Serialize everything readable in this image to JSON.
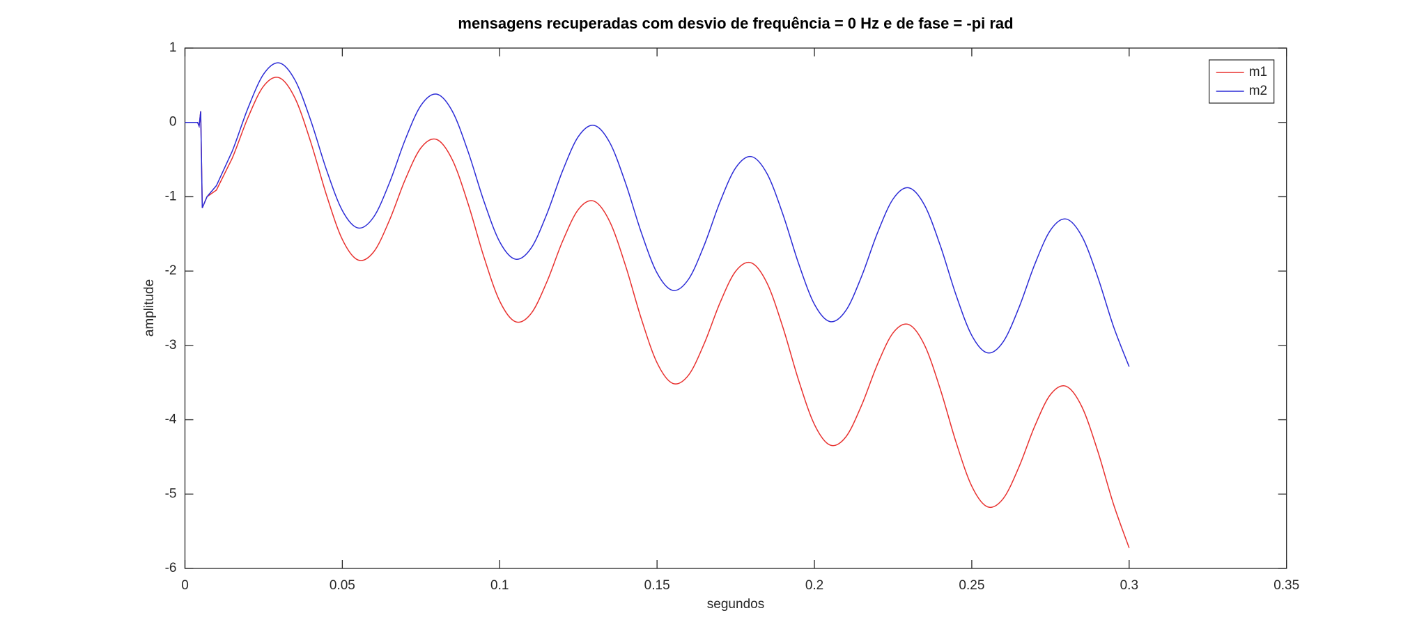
{
  "chart_data": {
    "type": "line",
    "title": "mensagens recuperadas com desvio de frequência = 0 Hz e de fase = -pi rad",
    "xlabel": "segundos",
    "ylabel": "amplitude",
    "x": [
      0,
      0.004,
      0.0045,
      0.005,
      0.0055,
      0.007,
      0.01,
      0.015,
      0.02,
      0.025,
      0.03,
      0.035,
      0.04,
      0.045,
      0.05,
      0.055,
      0.06,
      0.065,
      0.07,
      0.075,
      0.08,
      0.085,
      0.09,
      0.095,
      0.1,
      0.105,
      0.11,
      0.115,
      0.12,
      0.125,
      0.13,
      0.135,
      0.14,
      0.145,
      0.15,
      0.155,
      0.16,
      0.165,
      0.17,
      0.175,
      0.18,
      0.185,
      0.19,
      0.195,
      0.2,
      0.205,
      0.21,
      0.215,
      0.22,
      0.225,
      0.23,
      0.235,
      0.24,
      0.245,
      0.25,
      0.255,
      0.26,
      0.265,
      0.27,
      0.275,
      0.28,
      0.285,
      0.29,
      0.295,
      0.3
    ],
    "series": [
      {
        "name": "m1",
        "color": "#e8312f",
        "values": [
          0,
          0,
          -0.05,
          0.15,
          -1.15,
          -1.0,
          -0.91,
          -0.484,
          0.063,
          0.489,
          0.6,
          0.323,
          -0.269,
          -0.982,
          -1.574,
          -1.851,
          -1.74,
          -1.314,
          -0.767,
          -0.341,
          -0.23,
          -0.507,
          -1.099,
          -1.812,
          -2.404,
          -2.681,
          -2.57,
          -2.144,
          -1.597,
          -1.171,
          -1.06,
          -1.337,
          -1.929,
          -2.642,
          -3.234,
          -3.511,
          -3.4,
          -2.974,
          -2.427,
          -2.001,
          -1.89,
          -2.167,
          -2.759,
          -3.472,
          -4.064,
          -4.341,
          -4.23,
          -3.804,
          -3.257,
          -2.831,
          -2.72,
          -2.997,
          -3.589,
          -4.302,
          -4.894,
          -5.171,
          -5.06,
          -4.634,
          -4.087,
          -3.661,
          -3.55,
          -3.827,
          -4.419,
          -5.132,
          -5.724
        ]
      },
      {
        "name": "m2",
        "color": "#2b2bd6",
        "values": [
          0,
          0,
          -0.05,
          0.15,
          -1.15,
          -1.0,
          -0.85,
          -0.39,
          0.19,
          0.65,
          0.8,
          0.566,
          0.022,
          -0.642,
          -1.186,
          -1.42,
          -1.27,
          -0.81,
          -0.23,
          0.23,
          0.38,
          0.146,
          -0.398,
          -1.062,
          -1.606,
          -1.84,
          -1.69,
          -1.23,
          -0.65,
          -0.19,
          -0.04,
          -0.274,
          -0.818,
          -1.482,
          -2.026,
          -2.26,
          -2.11,
          -1.65,
          -1.07,
          -0.61,
          -0.46,
          -0.694,
          -1.238,
          -1.902,
          -2.446,
          -2.68,
          -2.53,
          -2.07,
          -1.49,
          -1.03,
          -0.88,
          -1.114,
          -1.658,
          -2.322,
          -2.866,
          -3.1,
          -2.95,
          -2.49,
          -1.91,
          -1.45,
          -1.3,
          -1.534,
          -2.078,
          -2.742,
          -3.286
        ]
      }
    ],
    "xlim": [
      0,
      0.35
    ],
    "xticks": [
      0,
      0.05,
      0.1,
      0.15,
      0.2,
      0.25,
      0.3,
      0.35
    ],
    "ylim": [
      -6,
      1
    ],
    "yticks": [
      -6,
      -5,
      -4,
      -3,
      -2,
      -1,
      0,
      1
    ],
    "grid": false,
    "legend": "upper right"
  }
}
